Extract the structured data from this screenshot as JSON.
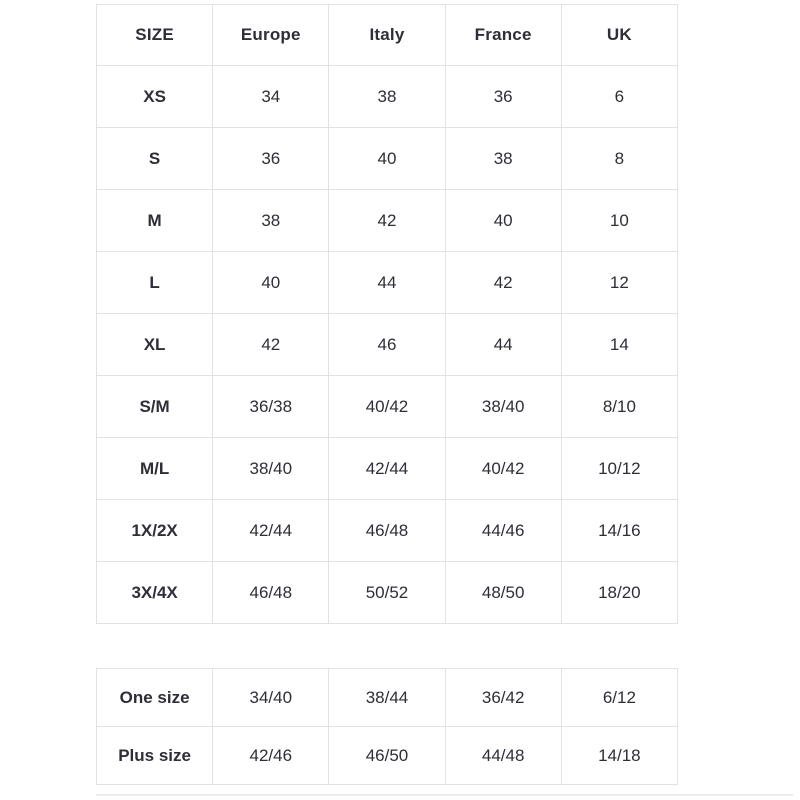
{
  "colors": {
    "text": "#2e2e38",
    "border": "#e2e2e2",
    "background": "#ffffff"
  },
  "main_table": {
    "headers": [
      "SIZE",
      "Europe",
      "Italy",
      "France",
      "UK"
    ],
    "rows": [
      {
        "size": "XS",
        "europe": "34",
        "italy": "38",
        "france": "36",
        "uk": "6"
      },
      {
        "size": "S",
        "europe": "36",
        "italy": "40",
        "france": "38",
        "uk": "8"
      },
      {
        "size": "M",
        "europe": "38",
        "italy": "42",
        "france": "40",
        "uk": "10"
      },
      {
        "size": "L",
        "europe": "40",
        "italy": "44",
        "france": "42",
        "uk": "12"
      },
      {
        "size": "XL",
        "europe": "42",
        "italy": "46",
        "france": "44",
        "uk": "14"
      },
      {
        "size": "S/M",
        "europe": "36/38",
        "italy": "40/42",
        "france": "38/40",
        "uk": "8/10"
      },
      {
        "size": "M/L",
        "europe": "38/40",
        "italy": "42/44",
        "france": "40/42",
        "uk": "10/12"
      },
      {
        "size": "1X/2X",
        "europe": "42/44",
        "italy": "46/48",
        "france": "44/46",
        "uk": "14/16"
      },
      {
        "size": "3X/4X",
        "europe": "46/48",
        "italy": "50/52",
        "france": "48/50",
        "uk": "18/20"
      }
    ]
  },
  "extra_table": {
    "rows": [
      {
        "size": "One size",
        "europe": "34/40",
        "italy": "38/44",
        "france": "36/42",
        "uk": "6/12"
      },
      {
        "size": "Plus size",
        "europe": "42/46",
        "italy": "46/50",
        "france": "44/48",
        "uk": "14/18"
      }
    ]
  }
}
